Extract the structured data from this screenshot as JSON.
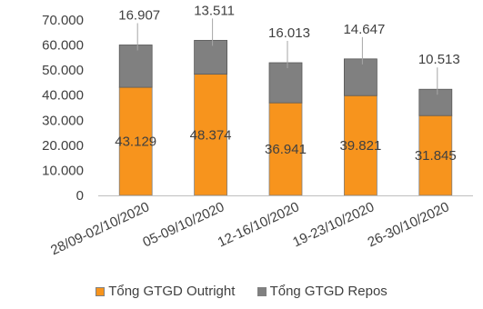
{
  "chart_data": {
    "type": "bar",
    "stacked": true,
    "categories": [
      "28/09-02/10/2020",
      "05-09/10/2020",
      "12-16/10/2020",
      "19-23/10/2020",
      "26-30/10/2020"
    ],
    "series": [
      {
        "name": "Tổng GTGD Outright",
        "values": [
          43129,
          48374,
          36941,
          39821,
          31845
        ],
        "labels": [
          "43.129",
          "48.374",
          "36.941",
          "39.821",
          "31.845"
        ],
        "color": "#F7941D"
      },
      {
        "name": "Tổng GTGD Repos",
        "values": [
          16907,
          13511,
          16013,
          14647,
          10513
        ],
        "labels": [
          "16.907",
          "13.511",
          "16.013",
          "14.647",
          "10.513"
        ],
        "color": "#808080"
      }
    ],
    "yticks": [
      "0",
      "10.000",
      "20.000",
      "30.000",
      "40.000",
      "50.000",
      "60.000",
      "70.000"
    ],
    "ylim": [
      0,
      70000
    ],
    "grid": false,
    "legend": "bottom"
  }
}
